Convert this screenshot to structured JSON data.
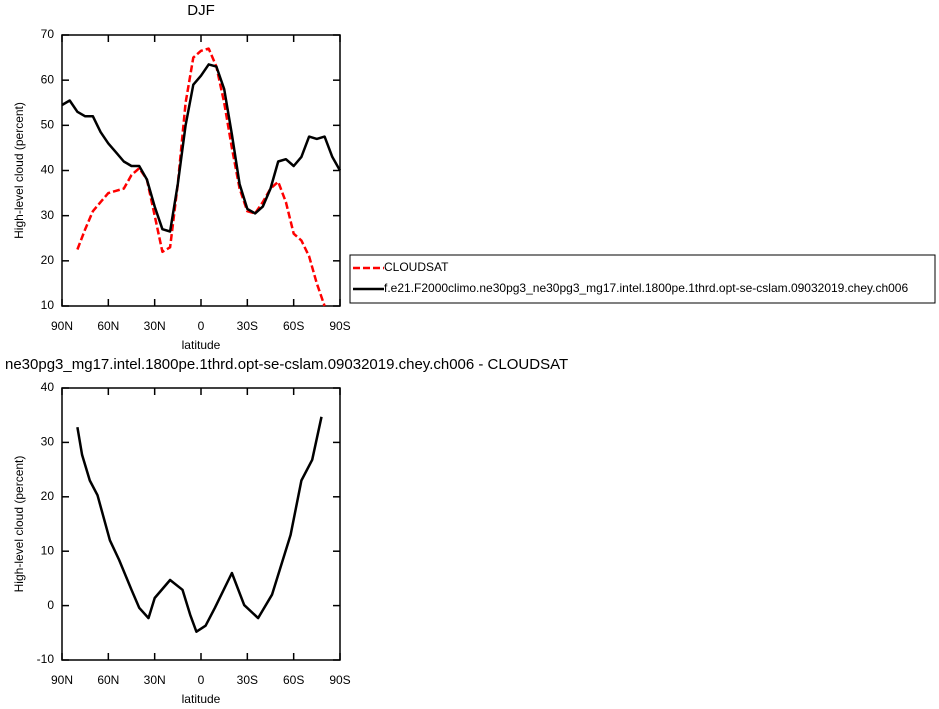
{
  "chart_data": [
    {
      "type": "line",
      "title": "DJF",
      "xlabel": "latitude",
      "ylabel": "High-level cloud (percent)",
      "x": [
        90,
        85,
        80,
        75,
        70,
        65,
        60,
        55,
        50,
        45,
        40,
        35,
        30,
        25,
        20,
        15,
        10,
        5,
        0,
        -5,
        -10,
        -15,
        -20,
        -25,
        -30,
        -35,
        -40,
        -45,
        -50,
        -55,
        -60,
        -65,
        -70,
        -75,
        -80,
        -85,
        -90
      ],
      "series": [
        {
          "name": "CLOUDSAT",
          "color": "#ff0000",
          "dashed": true,
          "values": [
            null,
            null,
            22.5,
            27,
            31,
            33,
            35,
            35.5,
            36,
            39,
            40.5,
            38,
            30,
            22,
            23,
            37,
            55,
            65,
            66.5,
            67,
            63,
            55,
            45,
            36,
            31,
            30.5,
            33,
            36,
            37.5,
            33,
            26,
            24.5,
            21,
            15,
            10,
            null,
            null
          ]
        },
        {
          "name": "f.e21.F2000climo.ne30pg3_ne30pg3_mg17.intel.1800pe.1thrd.opt-se-cslam.09032019.chey.ch006",
          "color": "#000000",
          "dashed": false,
          "values": [
            54.5,
            55.5,
            53,
            52,
            52,
            48.5,
            46,
            44,
            42,
            41,
            41,
            38,
            32,
            27,
            26.5,
            37,
            50,
            59,
            61,
            63.5,
            63,
            58,
            48,
            37,
            31.5,
            30.5,
            32,
            36,
            42,
            42.5,
            41,
            43,
            47.5,
            47,
            47.5,
            43,
            40
          ]
        }
      ],
      "xlim": [
        90,
        -90
      ],
      "xticks": [
        {
          "value": 90,
          "label": "90N"
        },
        {
          "value": 60,
          "label": "60N"
        },
        {
          "value": 30,
          "label": "30N"
        },
        0,
        {
          "value": -30,
          "label": "30S"
        },
        {
          "value": -60,
          "label": "60S"
        },
        {
          "value": -90,
          "label": "90S"
        }
      ],
      "ylim": [
        10,
        70
      ],
      "yticks": [
        10,
        20,
        30,
        40,
        50,
        60,
        70
      ],
      "legend": "right"
    },
    {
      "type": "line",
      "title": "ne30pg3_mg17.intel.1800pe.1thrd.opt-se-cslam.09032019.chey.ch006 - CLOUDSAT",
      "xlabel": "latitude",
      "ylabel": "High-level cloud (percent)",
      "x": [
        80,
        77,
        72,
        67,
        59,
        53,
        45,
        40,
        34,
        30,
        20,
        12,
        7,
        3,
        -3,
        -9,
        -20,
        -28,
        -37,
        -46,
        -58,
        -65,
        -72,
        -78
      ],
      "values": [
        32.8,
        27.7,
        23,
        20.3,
        12,
        8.4,
        2.9,
        -0.4,
        -2.3,
        1.4,
        4.7,
        2.9,
        -1.7,
        -4.8,
        -3.7,
        -0.4,
        6,
        0.1,
        -2.3,
        2,
        13,
        23,
        26.8,
        34.7
      ],
      "color": "#000000",
      "xlim": [
        90,
        -90
      ],
      "xticks": [
        {
          "value": 90,
          "label": "90N"
        },
        {
          "value": 60,
          "label": "60N"
        },
        {
          "value": 30,
          "label": "30N"
        },
        0,
        {
          "value": -30,
          "label": "30S"
        },
        {
          "value": -60,
          "label": "60S"
        },
        {
          "value": -90,
          "label": "90S"
        }
      ],
      "ylim": [
        -10,
        40
      ],
      "yticks": [
        -10,
        0,
        10,
        20,
        30,
        40
      ]
    }
  ]
}
